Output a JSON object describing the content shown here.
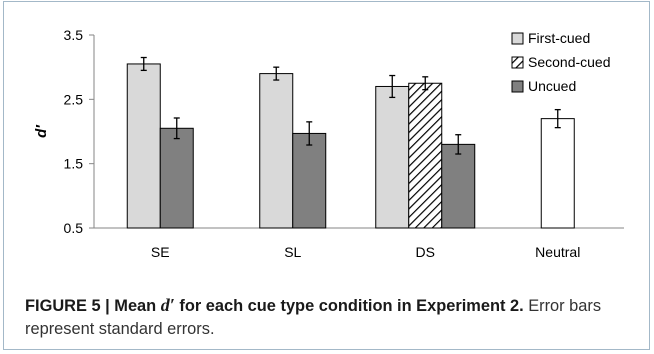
{
  "chart_data": {
    "type": "bar",
    "categories": [
      "SE",
      "SL",
      "DS",
      "Neutral"
    ],
    "ylabel": "d′",
    "ylim": [
      0.5,
      3.5
    ],
    "yticks": [
      "0.5",
      "1.5",
      "2.5",
      "3.5"
    ],
    "grid": false,
    "legend_position": "top-right",
    "series": [
      {
        "name": "First-cued",
        "style": "light",
        "color": "#d9d9d9",
        "values": [
          3.05,
          2.9,
          2.7,
          null
        ],
        "errors": [
          0.1,
          0.1,
          0.17,
          null
        ]
      },
      {
        "name": "Second-cued",
        "style": "hatch",
        "color": "#ffffff",
        "values": [
          null,
          null,
          2.75,
          null
        ],
        "errors": [
          null,
          null,
          0.1,
          null
        ]
      },
      {
        "name": "Uncued",
        "style": "dark",
        "color": "#808080",
        "values": [
          2.05,
          1.97,
          1.8,
          null
        ],
        "errors": [
          0.16,
          0.18,
          0.15,
          null
        ]
      },
      {
        "name": "",
        "style": "white",
        "color": "#ffffff",
        "values": [
          null,
          null,
          null,
          2.2
        ],
        "errors": [
          null,
          null,
          null,
          0.14
        ]
      }
    ]
  },
  "caption": {
    "label": "FIGURE 5 | Mean ",
    "dprime": "d′",
    "label_rest": " for each cue type condition in Experiment 2.",
    "text": " Error bars represent standard errors."
  }
}
